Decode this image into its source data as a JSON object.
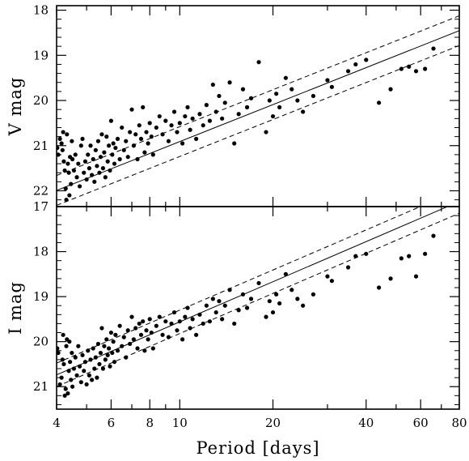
{
  "chart_data": {
    "type": "scatter",
    "x_scale": "log",
    "xlabel": "Period [days]",
    "xlim": [
      4,
      80
    ],
    "x_ticks": [
      4,
      6,
      8,
      10,
      20,
      40,
      60,
      80
    ],
    "x_tick_labels": [
      "4",
      "6",
      "8",
      "10",
      "20",
      "40",
      "60",
      "80"
    ],
    "grid": false,
    "legend": "none",
    "panels": [
      {
        "name": "V",
        "ylabel": "V mag",
        "ylim": [
          22.35,
          17.9
        ],
        "y_inverted": true,
        "y_ticks": [
          18,
          19,
          20,
          21,
          22
        ],
        "y_tick_labels": [
          "18",
          "19",
          "20",
          "21",
          "22"
        ],
        "fit_line": {
          "slope": -2.72,
          "intercept": 23.63
        },
        "scatter_band": 0.33,
        "points": [
          [
            4.02,
            21.05
          ],
          [
            4.05,
            21.2
          ],
          [
            4.1,
            20.85
          ],
          [
            4.15,
            20.95
          ],
          [
            4.18,
            21.1
          ],
          [
            4.2,
            20.7
          ],
          [
            4.22,
            21.35
          ],
          [
            4.25,
            21.55
          ],
          [
            4.28,
            21.95
          ],
          [
            4.3,
            22.2
          ],
          [
            4.32,
            20.75
          ],
          [
            4.35,
            21.4
          ],
          [
            4.38,
            21.6
          ],
          [
            4.4,
            22.1
          ],
          [
            4.42,
            21.25
          ],
          [
            4.45,
            21.85
          ],
          [
            4.48,
            20.9
          ],
          [
            4.5,
            21.3
          ],
          [
            4.55,
            21.55
          ],
          [
            4.6,
            21.2
          ],
          [
            4.65,
            21.7
          ],
          [
            4.7,
            21.4
          ],
          [
            4.75,
            21.9
          ],
          [
            4.8,
            21.0
          ],
          [
            4.85,
            20.85
          ],
          [
            4.9,
            21.6
          ],
          [
            4.95,
            21.35
          ],
          [
            5.0,
            21.75
          ],
          [
            5.05,
            21.2
          ],
          [
            5.1,
            21.5
          ],
          [
            5.15,
            21.0
          ],
          [
            5.2,
            21.65
          ],
          [
            5.25,
            21.3
          ],
          [
            5.3,
            21.8
          ],
          [
            5.35,
            21.1
          ],
          [
            5.4,
            21.45
          ],
          [
            5.45,
            20.9
          ],
          [
            5.5,
            21.6
          ],
          [
            5.55,
            21.25
          ],
          [
            5.6,
            20.75
          ],
          [
            5.65,
            21.5
          ],
          [
            5.7,
            21.15
          ],
          [
            5.75,
            21.7
          ],
          [
            5.8,
            20.8
          ],
          [
            5.85,
            21.35
          ],
          [
            5.9,
            21.0
          ],
          [
            5.95,
            21.55
          ],
          [
            6.0,
            20.45
          ],
          [
            6.05,
            21.2
          ],
          [
            6.1,
            20.95
          ],
          [
            6.15,
            21.4
          ],
          [
            6.2,
            21.05
          ],
          [
            6.3,
            20.85
          ],
          [
            6.4,
            21.3
          ],
          [
            6.5,
            20.6
          ],
          [
            6.6,
            21.1
          ],
          [
            6.7,
            20.9
          ],
          [
            6.8,
            21.25
          ],
          [
            6.9,
            20.7
          ],
          [
            7.0,
            20.2
          ],
          [
            7.1,
            21.0
          ],
          [
            7.2,
            20.75
          ],
          [
            7.3,
            21.3
          ],
          [
            7.4,
            20.55
          ],
          [
            7.5,
            20.85
          ],
          [
            7.6,
            20.15
          ],
          [
            7.7,
            21.15
          ],
          [
            7.8,
            20.7
          ],
          [
            7.9,
            20.95
          ],
          [
            8.0,
            20.5
          ],
          [
            8.1,
            20.8
          ],
          [
            8.2,
            21.2
          ],
          [
            8.4,
            20.6
          ],
          [
            8.6,
            20.35
          ],
          [
            8.8,
            20.75
          ],
          [
            9.0,
            20.45
          ],
          [
            9.2,
            20.9
          ],
          [
            9.4,
            20.55
          ],
          [
            9.6,
            20.25
          ],
          [
            9.8,
            20.7
          ],
          [
            10.0,
            20.5
          ],
          [
            10.2,
            20.95
          ],
          [
            10.4,
            20.35
          ],
          [
            10.6,
            20.15
          ],
          [
            10.8,
            20.65
          ],
          [
            11.0,
            20.4
          ],
          [
            11.3,
            20.85
          ],
          [
            11.6,
            20.3
          ],
          [
            11.9,
            20.55
          ],
          [
            12.2,
            20.1
          ],
          [
            12.5,
            20.45
          ],
          [
            12.8,
            19.65
          ],
          [
            13.1,
            20.25
          ],
          [
            13.4,
            19.9
          ],
          [
            13.7,
            20.4
          ],
          [
            14.0,
            20.05
          ],
          [
            14.5,
            19.6
          ],
          [
            15.0,
            20.95
          ],
          [
            15.5,
            20.3
          ],
          [
            16.0,
            19.75
          ],
          [
            16.5,
            20.15
          ],
          [
            17.0,
            19.95
          ],
          [
            18.0,
            19.15
          ],
          [
            19.0,
            20.7
          ],
          [
            19.5,
            20.0
          ],
          [
            20.0,
            20.35
          ],
          [
            20.5,
            19.85
          ],
          [
            21.0,
            20.15
          ],
          [
            22.0,
            19.5
          ],
          [
            23.0,
            19.75
          ],
          [
            24.0,
            20.0
          ],
          [
            25.0,
            20.25
          ],
          [
            27.0,
            19.9
          ],
          [
            30.0,
            19.55
          ],
          [
            31.0,
            19.7
          ],
          [
            35.0,
            19.35
          ],
          [
            37.0,
            19.2
          ],
          [
            40.0,
            19.1
          ],
          [
            44.0,
            20.05
          ],
          [
            48.0,
            19.75
          ],
          [
            52.0,
            19.3
          ],
          [
            55.0,
            19.25
          ],
          [
            58.0,
            19.35
          ],
          [
            62.0,
            19.3
          ],
          [
            66.0,
            18.85
          ]
        ]
      },
      {
        "name": "I",
        "ylabel": "I mag",
        "ylim": [
          21.5,
          17.0
        ],
        "y_inverted": true,
        "y_ticks": [
          17,
          18,
          19,
          20,
          21
        ],
        "y_tick_labels": [
          "17",
          "18",
          "19",
          "20",
          "21"
        ],
        "fit_line": {
          "slope": -2.96,
          "intercept": 22.52
        },
        "scatter_band": 0.26,
        "points": [
          [
            4.02,
            20.15
          ],
          [
            4.05,
            20.25
          ],
          [
            4.1,
            20.95
          ],
          [
            4.15,
            20.8
          ],
          [
            4.18,
            20.4
          ],
          [
            4.2,
            19.85
          ],
          [
            4.22,
            20.5
          ],
          [
            4.25,
            21.2
          ],
          [
            4.28,
            21.05
          ],
          [
            4.3,
            20.1
          ],
          [
            4.32,
            19.95
          ],
          [
            4.35,
            21.15
          ],
          [
            4.38,
            20.65
          ],
          [
            4.4,
            20.0
          ],
          [
            4.42,
            20.45
          ],
          [
            4.45,
            20.85
          ],
          [
            4.48,
            20.25
          ],
          [
            4.5,
            21.0
          ],
          [
            4.55,
            20.6
          ],
          [
            4.6,
            20.35
          ],
          [
            4.65,
            20.75
          ],
          [
            4.7,
            20.1
          ],
          [
            4.75,
            20.55
          ],
          [
            4.8,
            20.9
          ],
          [
            4.85,
            20.3
          ],
          [
            4.9,
            20.65
          ],
          [
            4.95,
            20.45
          ],
          [
            5.0,
            20.95
          ],
          [
            5.05,
            20.2
          ],
          [
            5.1,
            20.75
          ],
          [
            5.15,
            20.4
          ],
          [
            5.2,
            20.85
          ],
          [
            5.25,
            20.15
          ],
          [
            5.3,
            20.6
          ],
          [
            5.35,
            20.35
          ],
          [
            5.4,
            20.8
          ],
          [
            5.45,
            20.05
          ],
          [
            5.5,
            20.5
          ],
          [
            5.55,
            20.25
          ],
          [
            5.6,
            19.7
          ],
          [
            5.65,
            20.6
          ],
          [
            5.7,
            20.1
          ],
          [
            5.75,
            20.4
          ],
          [
            5.8,
            19.95
          ],
          [
            5.85,
            20.3
          ],
          [
            5.9,
            20.15
          ],
          [
            5.95,
            20.55
          ],
          [
            6.0,
            19.8
          ],
          [
            6.05,
            20.25
          ],
          [
            6.1,
            20.0
          ],
          [
            6.15,
            20.45
          ],
          [
            6.2,
            19.85
          ],
          [
            6.3,
            20.2
          ],
          [
            6.4,
            19.65
          ],
          [
            6.5,
            20.1
          ],
          [
            6.6,
            19.9
          ],
          [
            6.7,
            20.35
          ],
          [
            6.8,
            19.75
          ],
          [
            6.9,
            20.05
          ],
          [
            7.0,
            19.45
          ],
          [
            7.1,
            19.95
          ],
          [
            7.2,
            19.7
          ],
          [
            7.3,
            20.15
          ],
          [
            7.4,
            19.6
          ],
          [
            7.5,
            19.85
          ],
          [
            7.6,
            19.55
          ],
          [
            7.7,
            20.2
          ],
          [
            7.8,
            19.75
          ],
          [
            7.9,
            19.95
          ],
          [
            8.0,
            19.5
          ],
          [
            8.1,
            19.8
          ],
          [
            8.2,
            20.15
          ],
          [
            8.4,
            19.65
          ],
          [
            8.6,
            19.45
          ],
          [
            8.8,
            19.85
          ],
          [
            9.0,
            19.55
          ],
          [
            9.2,
            19.9
          ],
          [
            9.4,
            19.6
          ],
          [
            9.6,
            19.35
          ],
          [
            9.8,
            19.75
          ],
          [
            10.0,
            19.55
          ],
          [
            10.2,
            19.95
          ],
          [
            10.4,
            19.45
          ],
          [
            10.6,
            19.25
          ],
          [
            10.8,
            19.7
          ],
          [
            11.0,
            19.5
          ],
          [
            11.3,
            19.85
          ],
          [
            11.6,
            19.4
          ],
          [
            11.9,
            19.6
          ],
          [
            12.2,
            19.2
          ],
          [
            12.5,
            19.55
          ],
          [
            12.8,
            19.05
          ],
          [
            13.1,
            19.35
          ],
          [
            13.4,
            19.1
          ],
          [
            13.7,
            19.5
          ],
          [
            14.0,
            19.2
          ],
          [
            14.5,
            18.85
          ],
          [
            15.0,
            19.6
          ],
          [
            15.5,
            19.3
          ],
          [
            16.0,
            18.95
          ],
          [
            16.5,
            19.25
          ],
          [
            17.0,
            19.05
          ],
          [
            18.0,
            18.7
          ],
          [
            19.0,
            19.45
          ],
          [
            19.5,
            19.1
          ],
          [
            20.0,
            19.35
          ],
          [
            20.5,
            18.95
          ],
          [
            21.0,
            19.15
          ],
          [
            22.0,
            18.5
          ],
          [
            23.0,
            18.85
          ],
          [
            24.0,
            19.05
          ],
          [
            25.0,
            19.2
          ],
          [
            27.0,
            18.95
          ],
          [
            30.0,
            18.55
          ],
          [
            31.0,
            18.65
          ],
          [
            35.0,
            18.35
          ],
          [
            37.0,
            18.1
          ],
          [
            40.0,
            18.05
          ],
          [
            44.0,
            18.8
          ],
          [
            48.0,
            18.6
          ],
          [
            52.0,
            18.15
          ],
          [
            55.0,
            18.1
          ],
          [
            58.0,
            18.55
          ],
          [
            62.0,
            18.05
          ],
          [
            66.0,
            17.65
          ]
        ]
      }
    ]
  }
}
